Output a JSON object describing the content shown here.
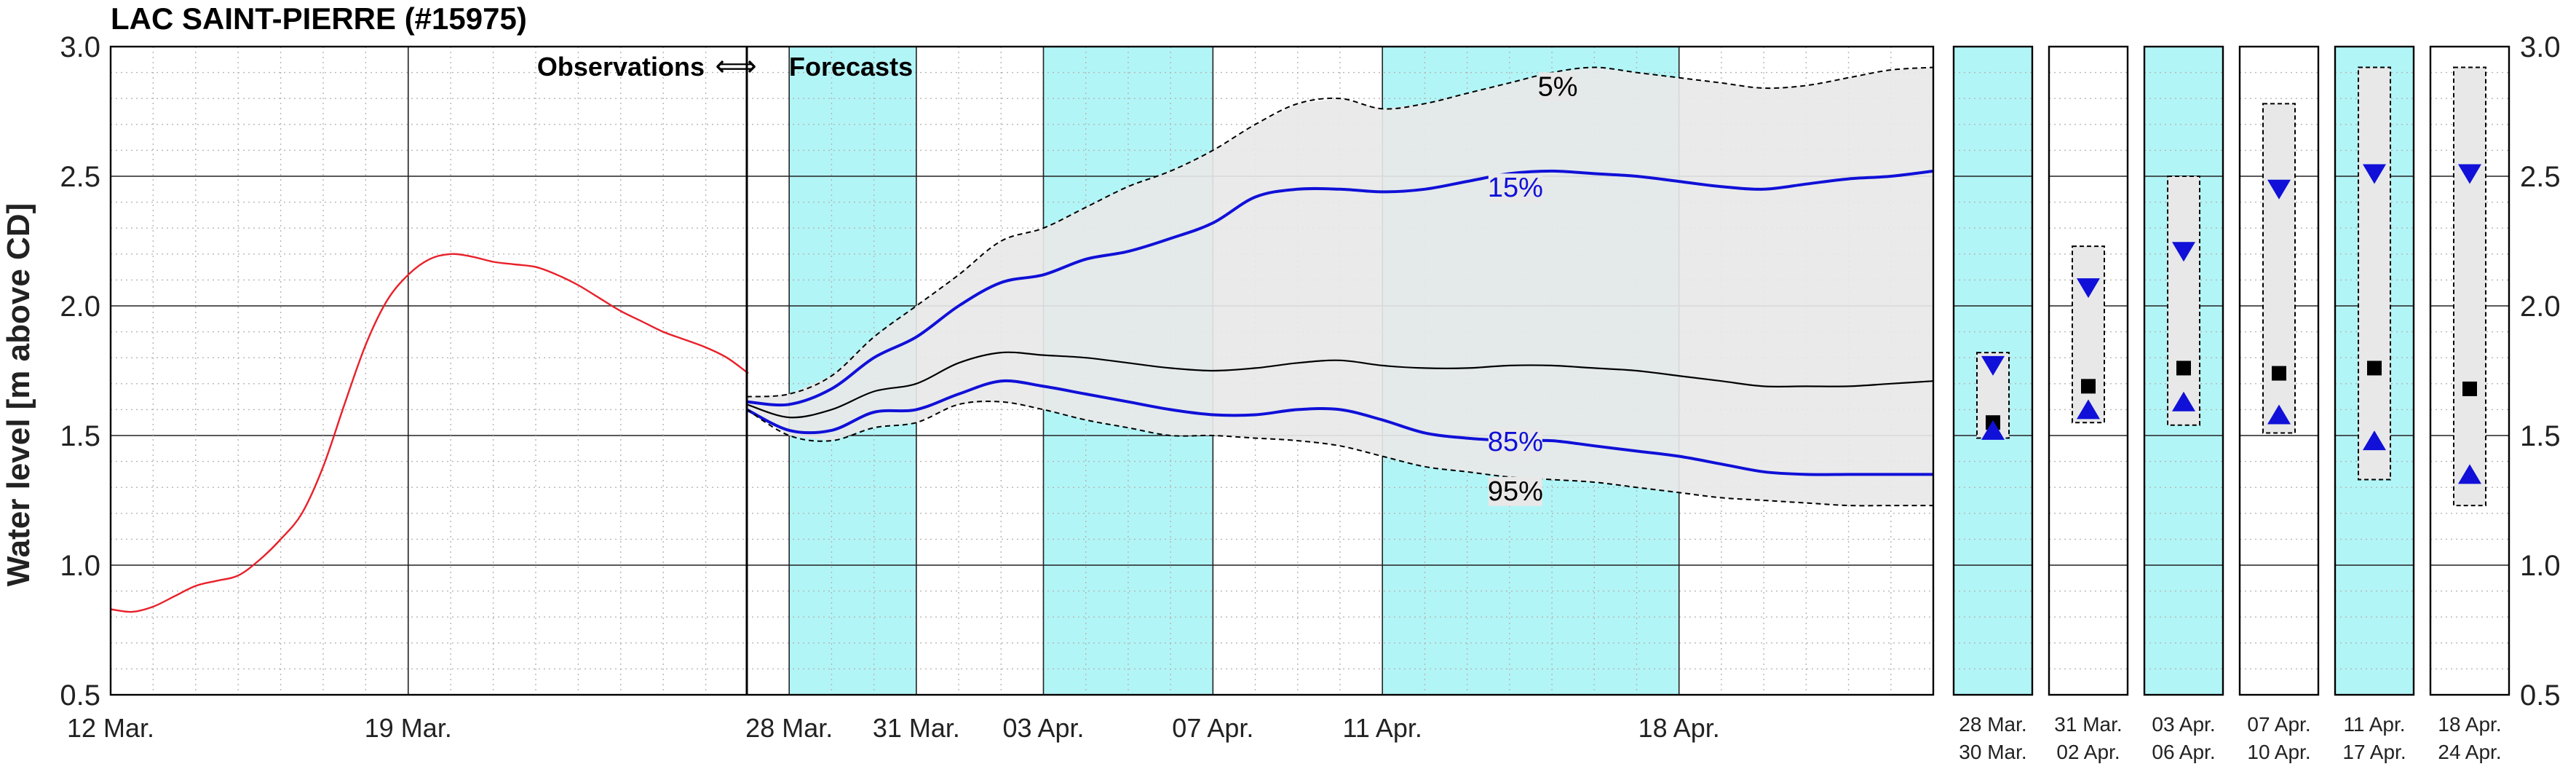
{
  "chart_data": {
    "type": "line",
    "title": "LAC SAINT-PIERRE (#15975)",
    "ylabel": "Water level [m above CD]",
    "ylim": [
      0.5,
      3.0
    ],
    "yticks": [
      "0.5",
      "1.0",
      "1.5",
      "2.0",
      "2.5",
      "3.0"
    ],
    "grid": true,
    "colors": {
      "observed": "#e8202a",
      "forecast_blue": "#1010d8",
      "median": "#000000",
      "band_fill": "#e8e8e8",
      "highlight": "#b2f5f7"
    },
    "observations_label": "Observations",
    "arrow_symbol": "⟺",
    "forecasts_label": "Forecasts",
    "observed": {
      "xticks": [
        "12 Mar.",
        "19 Mar."
      ],
      "x_start": "12 Mar.",
      "x_end": "28 Mar.",
      "x": [
        12,
        12.5,
        13,
        13.5,
        14,
        14.5,
        15,
        15.5,
        16,
        16.5,
        17,
        17.5,
        18,
        18.5,
        19,
        19.5,
        20,
        20.5,
        21,
        21.5,
        22,
        22.5,
        23,
        23.5,
        24,
        24.5,
        25,
        25.5,
        26,
        26.5,
        27
      ],
      "y": [
        0.83,
        0.82,
        0.84,
        0.88,
        0.92,
        0.94,
        0.96,
        1.02,
        1.1,
        1.2,
        1.38,
        1.62,
        1.85,
        2.02,
        2.12,
        2.18,
        2.2,
        2.19,
        2.17,
        2.16,
        2.15,
        2.12,
        2.08,
        2.03,
        1.98,
        1.94,
        1.9,
        1.87,
        1.84,
        1.8,
        1.74
      ]
    },
    "forecast": {
      "xticks": [
        "28 Mar.",
        "31 Mar.",
        "03 Apr.",
        "07 Apr.",
        "11 Apr.",
        "18 Apr."
      ],
      "highlight_periods": [
        [
          "28 Mar.",
          "31 Mar."
        ],
        [
          "03 Apr.",
          "07 Apr."
        ],
        [
          "11 Apr.",
          "18 Apr."
        ]
      ],
      "x": [
        "27 Mar.",
        "28 Mar.",
        "29 Mar.",
        "30 Mar.",
        "31 Mar.",
        "01 Apr.",
        "02 Apr.",
        "03 Apr.",
        "04 Apr.",
        "05 Apr.",
        "06 Apr.",
        "07 Apr.",
        "08 Apr.",
        "09 Apr.",
        "10 Apr.",
        "11 Apr.",
        "12 Apr.",
        "13 Apr.",
        "14 Apr.",
        "15 Apr.",
        "16 Apr.",
        "17 Apr.",
        "18 Apr.",
        "19 Apr.",
        "20 Apr.",
        "21 Apr.",
        "22 Apr.",
        "23 Apr.",
        "24 Apr."
      ],
      "series": [
        {
          "name": "5%",
          "values": [
            1.65,
            1.66,
            1.73,
            1.88,
            2.0,
            2.12,
            2.25,
            2.3,
            2.38,
            2.46,
            2.52,
            2.6,
            2.7,
            2.78,
            2.8,
            2.76,
            2.78,
            2.82,
            2.86,
            2.9,
            2.92,
            2.9,
            2.88,
            2.86,
            2.84,
            2.85,
            2.88,
            2.91,
            2.92
          ]
        },
        {
          "name": "15%",
          "values": [
            1.63,
            1.62,
            1.68,
            1.8,
            1.88,
            2.0,
            2.09,
            2.12,
            2.18,
            2.21,
            2.26,
            2.32,
            2.42,
            2.45,
            2.45,
            2.44,
            2.45,
            2.48,
            2.51,
            2.52,
            2.51,
            2.5,
            2.48,
            2.46,
            2.45,
            2.47,
            2.49,
            2.5,
            2.52
          ]
        },
        {
          "name": "median",
          "values": [
            1.62,
            1.57,
            1.6,
            1.67,
            1.7,
            1.78,
            1.82,
            1.81,
            1.8,
            1.78,
            1.76,
            1.75,
            1.76,
            1.78,
            1.79,
            1.77,
            1.76,
            1.76,
            1.77,
            1.77,
            1.76,
            1.75,
            1.73,
            1.71,
            1.69,
            1.69,
            1.69,
            1.7,
            1.71
          ]
        },
        {
          "name": "85%",
          "values": [
            1.6,
            1.52,
            1.52,
            1.59,
            1.6,
            1.66,
            1.71,
            1.69,
            1.66,
            1.63,
            1.6,
            1.58,
            1.58,
            1.6,
            1.6,
            1.56,
            1.51,
            1.49,
            1.48,
            1.48,
            1.46,
            1.44,
            1.42,
            1.39,
            1.36,
            1.35,
            1.35,
            1.35,
            1.35
          ]
        },
        {
          "name": "95%",
          "values": [
            1.6,
            1.5,
            1.48,
            1.53,
            1.55,
            1.62,
            1.63,
            1.6,
            1.56,
            1.53,
            1.5,
            1.5,
            1.49,
            1.48,
            1.46,
            1.42,
            1.38,
            1.36,
            1.34,
            1.33,
            1.32,
            1.3,
            1.28,
            1.26,
            1.25,
            1.24,
            1.23,
            1.23,
            1.23
          ]
        }
      ]
    },
    "summary": {
      "highlighted": [
        true,
        false,
        true,
        false,
        true,
        false
      ],
      "panels": [
        {
          "label_top": "28 Mar.",
          "label_bottom": "30 Mar.",
          "low": 1.49,
          "high": 1.82,
          "median": 1.55,
          "p15": 1.77,
          "p85": 1.52
        },
        {
          "label_top": "31 Mar.",
          "label_bottom": "02 Apr.",
          "low": 1.55,
          "high": 2.23,
          "median": 1.69,
          "p15": 2.07,
          "p85": 1.6
        },
        {
          "label_top": "03 Apr.",
          "label_bottom": "06 Apr.",
          "low": 1.54,
          "high": 2.5,
          "median": 1.76,
          "p15": 2.21,
          "p85": 1.63
        },
        {
          "label_top": "07 Apr.",
          "label_bottom": "10 Apr.",
          "low": 1.51,
          "high": 2.78,
          "median": 1.74,
          "p15": 2.45,
          "p85": 1.58
        },
        {
          "label_top": "11 Apr.",
          "label_bottom": "17 Apr.",
          "low": 1.33,
          "high": 2.92,
          "median": 1.76,
          "p15": 2.51,
          "p85": 1.48
        },
        {
          "label_top": "18 Apr.",
          "label_bottom": "24 Apr.",
          "low": 1.23,
          "high": 2.92,
          "median": 1.68,
          "p15": 2.51,
          "p85": 1.35
        }
      ]
    }
  }
}
